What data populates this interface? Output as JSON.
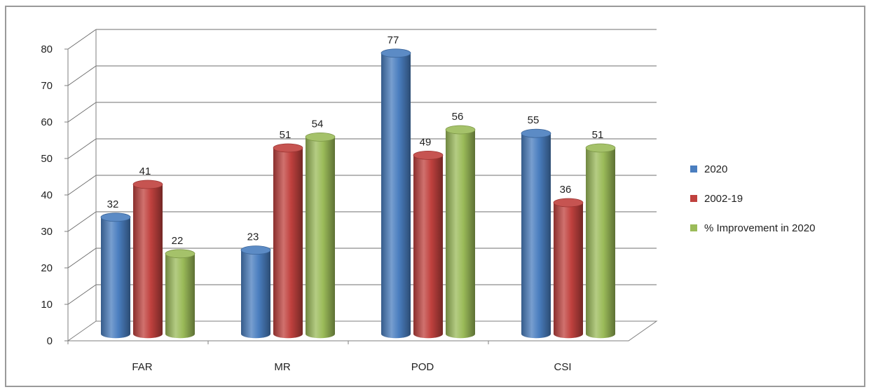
{
  "chart_data": {
    "type": "bar",
    "categories": [
      "FAR",
      "MR",
      "POD",
      "CSI"
    ],
    "series": [
      {
        "name": "2020",
        "values": [
          32,
          23,
          77,
          55
        ],
        "color": "#4a7ebf"
      },
      {
        "name": "2002-19",
        "values": [
          41,
          51,
          49,
          36
        ],
        "color": "#c0413e"
      },
      {
        "name": "% Improvement in 2020",
        "values": [
          22,
          54,
          56,
          51
        ],
        "color": "#9bbb59"
      }
    ],
    "yticks": [
      "0",
      "10",
      "20",
      "30",
      "40",
      "50",
      "60",
      "70",
      "80"
    ],
    "ylim": [
      0,
      80
    ],
    "grid": true,
    "legend_position": "right",
    "style": "3d-cylinder"
  }
}
